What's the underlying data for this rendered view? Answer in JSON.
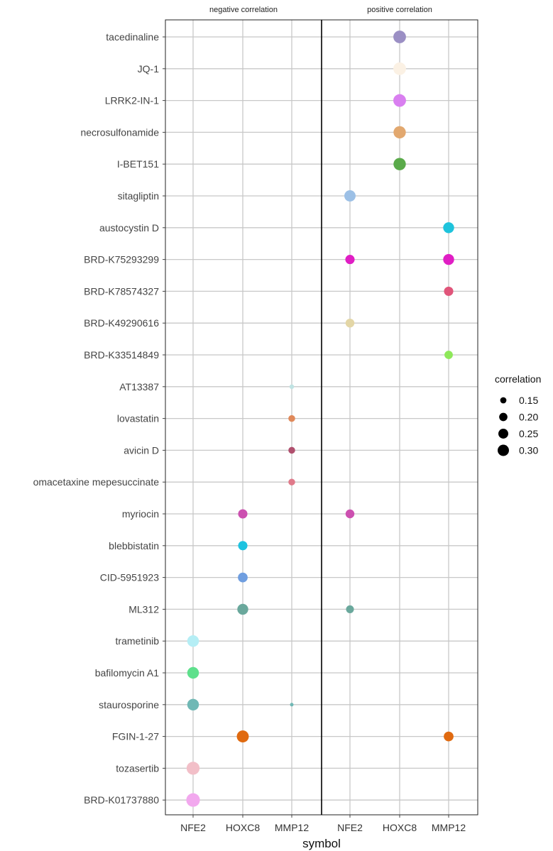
{
  "chart_data": {
    "type": "scatter",
    "xlabel": "symbol",
    "ylabel": "",
    "facets": [
      "negative correlation",
      "positive correlation"
    ],
    "symbols": [
      "NFE2",
      "HOXC8",
      "MMP12"
    ],
    "compounds": [
      "tacedinaline",
      "JQ-1",
      "LRRK2-IN-1",
      "necrosulfonamide",
      "I-BET151",
      "sitagliptin",
      "austocystin D",
      "BRD-K75293299",
      "BRD-K78574327",
      "BRD-K49290616",
      "BRD-K33514849",
      "AT13387",
      "lovastatin",
      "avicin D",
      "omacetaxine mepesuccinate",
      "myriocin",
      "blebbistatin",
      "CID-5951923",
      "ML312",
      "trametinib",
      "bafilomycin A1",
      "staurosporine",
      "FGIN-1-27",
      "tozasertib",
      "BRD-K01737880"
    ],
    "legend": {
      "title": "correlation",
      "values": [
        0.15,
        0.2,
        0.25,
        0.3
      ],
      "labels": [
        "0.15",
        "0.20",
        "0.25",
        "0.30"
      ],
      "placement": "right"
    },
    "size_range": [
      0.1,
      0.33
    ],
    "grid": true,
    "points": [
      {
        "facet": "positive correlation",
        "symbol": "HOXC8",
        "compound": "tacedinaline",
        "correlation": 0.28,
        "color": "#9b8fc4"
      },
      {
        "facet": "positive correlation",
        "symbol": "HOXC8",
        "compound": "JQ-1",
        "correlation": 0.28,
        "color": "#fbf1e4"
      },
      {
        "facet": "positive correlation",
        "symbol": "HOXC8",
        "compound": "LRRK2-IN-1",
        "correlation": 0.28,
        "color": "#d97ff0"
      },
      {
        "facet": "positive correlation",
        "symbol": "HOXC8",
        "compound": "necrosulfonamide",
        "correlation": 0.27,
        "color": "#e2a86f"
      },
      {
        "facet": "positive correlation",
        "symbol": "HOXC8",
        "compound": "I-BET151",
        "correlation": 0.27,
        "color": "#5aaa4a"
      },
      {
        "facet": "positive correlation",
        "symbol": "NFE2",
        "compound": "sitagliptin",
        "correlation": 0.24,
        "color": "#9cc0e6"
      },
      {
        "facet": "positive correlation",
        "symbol": "MMP12",
        "compound": "austocystin D",
        "correlation": 0.23,
        "color": "#1ec3dc"
      },
      {
        "facet": "positive correlation",
        "symbol": "NFE2",
        "compound": "BRD-K75293299",
        "correlation": 0.19,
        "color": "#e01ec4"
      },
      {
        "facet": "positive correlation",
        "symbol": "MMP12",
        "compound": "BRD-K75293299",
        "correlation": 0.23,
        "color": "#e01ec4"
      },
      {
        "facet": "positive correlation",
        "symbol": "MMP12",
        "compound": "BRD-K78574327",
        "correlation": 0.19,
        "color": "#e0557a"
      },
      {
        "facet": "positive correlation",
        "symbol": "NFE2",
        "compound": "BRD-K49290616",
        "correlation": 0.18,
        "color": "#e3d6a6"
      },
      {
        "facet": "positive correlation",
        "symbol": "MMP12",
        "compound": "BRD-K33514849",
        "correlation": 0.17,
        "color": "#8ee85a"
      },
      {
        "facet": "negative correlation",
        "symbol": "MMP12",
        "compound": "AT13387",
        "correlation": 0.11,
        "color": "#bfe3e3"
      },
      {
        "facet": "negative correlation",
        "symbol": "MMP12",
        "compound": "lovastatin",
        "correlation": 0.14,
        "color": "#e0895a"
      },
      {
        "facet": "negative correlation",
        "symbol": "MMP12",
        "compound": "avicin D",
        "correlation": 0.14,
        "color": "#b0506e"
      },
      {
        "facet": "negative correlation",
        "symbol": "MMP12",
        "compound": "omacetaxine mepesuccinate",
        "correlation": 0.14,
        "color": "#e07a8a"
      },
      {
        "facet": "negative correlation",
        "symbol": "HOXC8",
        "compound": "myriocin",
        "correlation": 0.19,
        "color": "#cc50b0"
      },
      {
        "facet": "positive correlation",
        "symbol": "NFE2",
        "compound": "myriocin",
        "correlation": 0.18,
        "color": "#cc50b0"
      },
      {
        "facet": "negative correlation",
        "symbol": "HOXC8",
        "compound": "blebbistatin",
        "correlation": 0.19,
        "color": "#1ec3e0"
      },
      {
        "facet": "negative correlation",
        "symbol": "HOXC8",
        "compound": "CID-5951923",
        "correlation": 0.2,
        "color": "#6f9ee0"
      },
      {
        "facet": "negative correlation",
        "symbol": "HOXC8",
        "compound": "ML312",
        "correlation": 0.23,
        "color": "#6aa89c"
      },
      {
        "facet": "positive correlation",
        "symbol": "NFE2",
        "compound": "ML312",
        "correlation": 0.16,
        "color": "#6aa89c"
      },
      {
        "facet": "negative correlation",
        "symbol": "NFE2",
        "compound": "trametinib",
        "correlation": 0.25,
        "color": "#b5eef5"
      },
      {
        "facet": "negative correlation",
        "symbol": "NFE2",
        "compound": "bafilomycin A1",
        "correlation": 0.25,
        "color": "#5ee08c"
      },
      {
        "facet": "negative correlation",
        "symbol": "NFE2",
        "compound": "staurosporine",
        "correlation": 0.25,
        "color": "#70b8b5"
      },
      {
        "facet": "negative correlation",
        "symbol": "MMP12",
        "compound": "staurosporine",
        "correlation": 0.1,
        "color": "#70b8b5"
      },
      {
        "facet": "negative correlation",
        "symbol": "HOXC8",
        "compound": "FGIN-1-27",
        "correlation": 0.26,
        "color": "#e06a10"
      },
      {
        "facet": "positive correlation",
        "symbol": "MMP12",
        "compound": "FGIN-1-27",
        "correlation": 0.2,
        "color": "#e06a10"
      },
      {
        "facet": "negative correlation",
        "symbol": "NFE2",
        "compound": "tozasertib",
        "correlation": 0.29,
        "color": "#f2bfc8"
      },
      {
        "facet": "negative correlation",
        "symbol": "NFE2",
        "compound": "BRD-K01737880",
        "correlation": 0.31,
        "color": "#f2a8ee"
      }
    ]
  }
}
